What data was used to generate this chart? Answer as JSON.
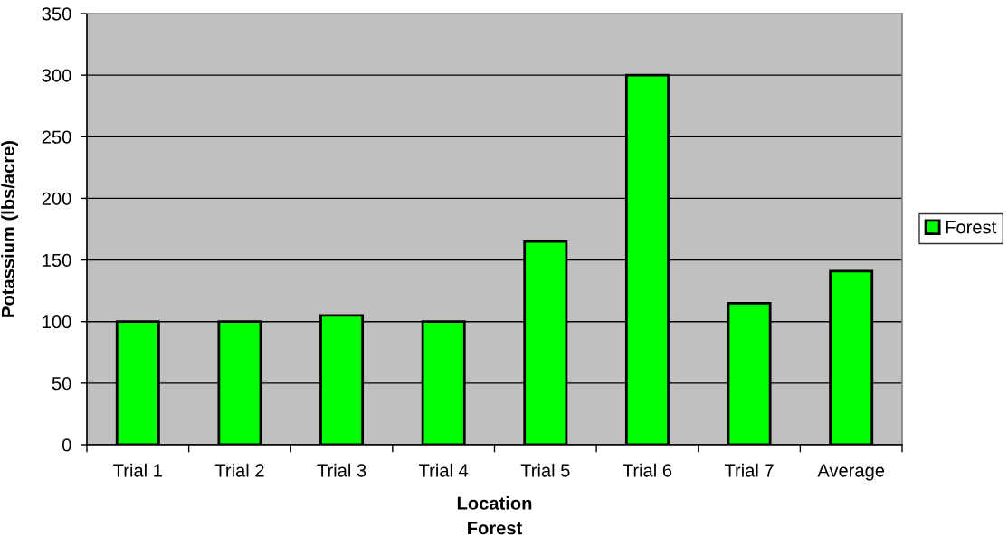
{
  "chart_data": {
    "type": "bar",
    "xlabel": "Location\nForest",
    "ylabel": "Potassium (lbs/acre)",
    "categories": [
      "Trial 1",
      "Trial 2",
      "Trial 3",
      "Trial 4",
      "Trial 5",
      "Trial 6",
      "Trial 7",
      "Average"
    ],
    "series": [
      {
        "name": "Forest",
        "color": "#00ff00",
        "values": [
          100,
          100,
          105,
          100,
          165,
          300,
          115,
          141
        ]
      }
    ],
    "ylim": [
      0,
      350
    ],
    "yticks": [
      0,
      50,
      100,
      150,
      200,
      250,
      300,
      350
    ],
    "grid": "y",
    "legend": "right"
  }
}
